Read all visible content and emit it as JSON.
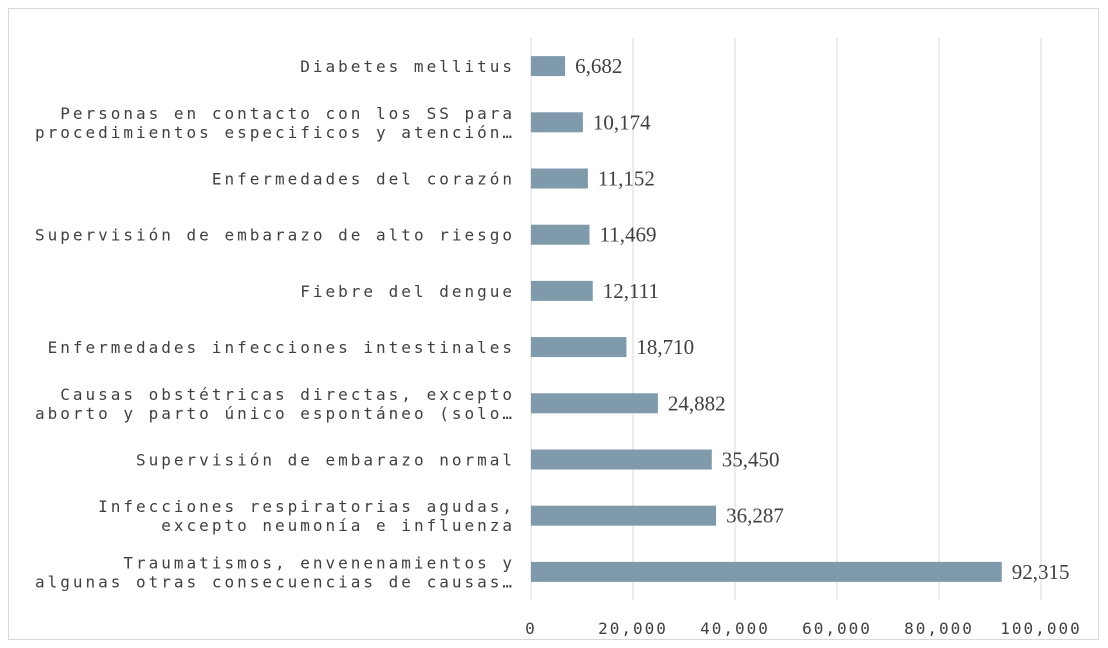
{
  "chart_data": {
    "type": "bar",
    "orientation": "horizontal",
    "categories": [
      "Diabetes mellitus",
      "Personas en contacto con los SS para\nprocedimientos especificos y atención…",
      "Enfermedades del corazón",
      "Supervisión de embarazo de alto riesgo",
      "Fiebre del dengue",
      "Enfermedades infecciones intestinales",
      "Causas obstétricas directas, excepto\naborto y parto único espontáneo (solo…",
      "Supervisión de embarazo normal",
      "Infecciones respiratorias agudas,\nexcepto neumonía e influenza",
      "Traumatismos, envenenamientos y\nalgunas otras consecuencias de causas…"
    ],
    "values": [
      6682,
      10174,
      11152,
      11469,
      12111,
      18710,
      24882,
      35450,
      36287,
      92315
    ],
    "value_labels": [
      "6,682",
      "10,174",
      "11,152",
      "11,469",
      "12,111",
      "18,710",
      "24,882",
      "35,450",
      "36,287",
      "92,315"
    ],
    "color": "#7f9aab",
    "xlim": [
      0,
      100000
    ],
    "xticks": [
      0,
      {
        "value": 20000,
        "label": "20,000"
      },
      {
        "value": 40000,
        "label": "40,000"
      },
      {
        "value": 60000,
        "label": "60,000"
      },
      {
        "value": 80000,
        "label": "80,000"
      },
      {
        "value": 100000,
        "label": "100,000"
      }
    ],
    "grid": true
  }
}
